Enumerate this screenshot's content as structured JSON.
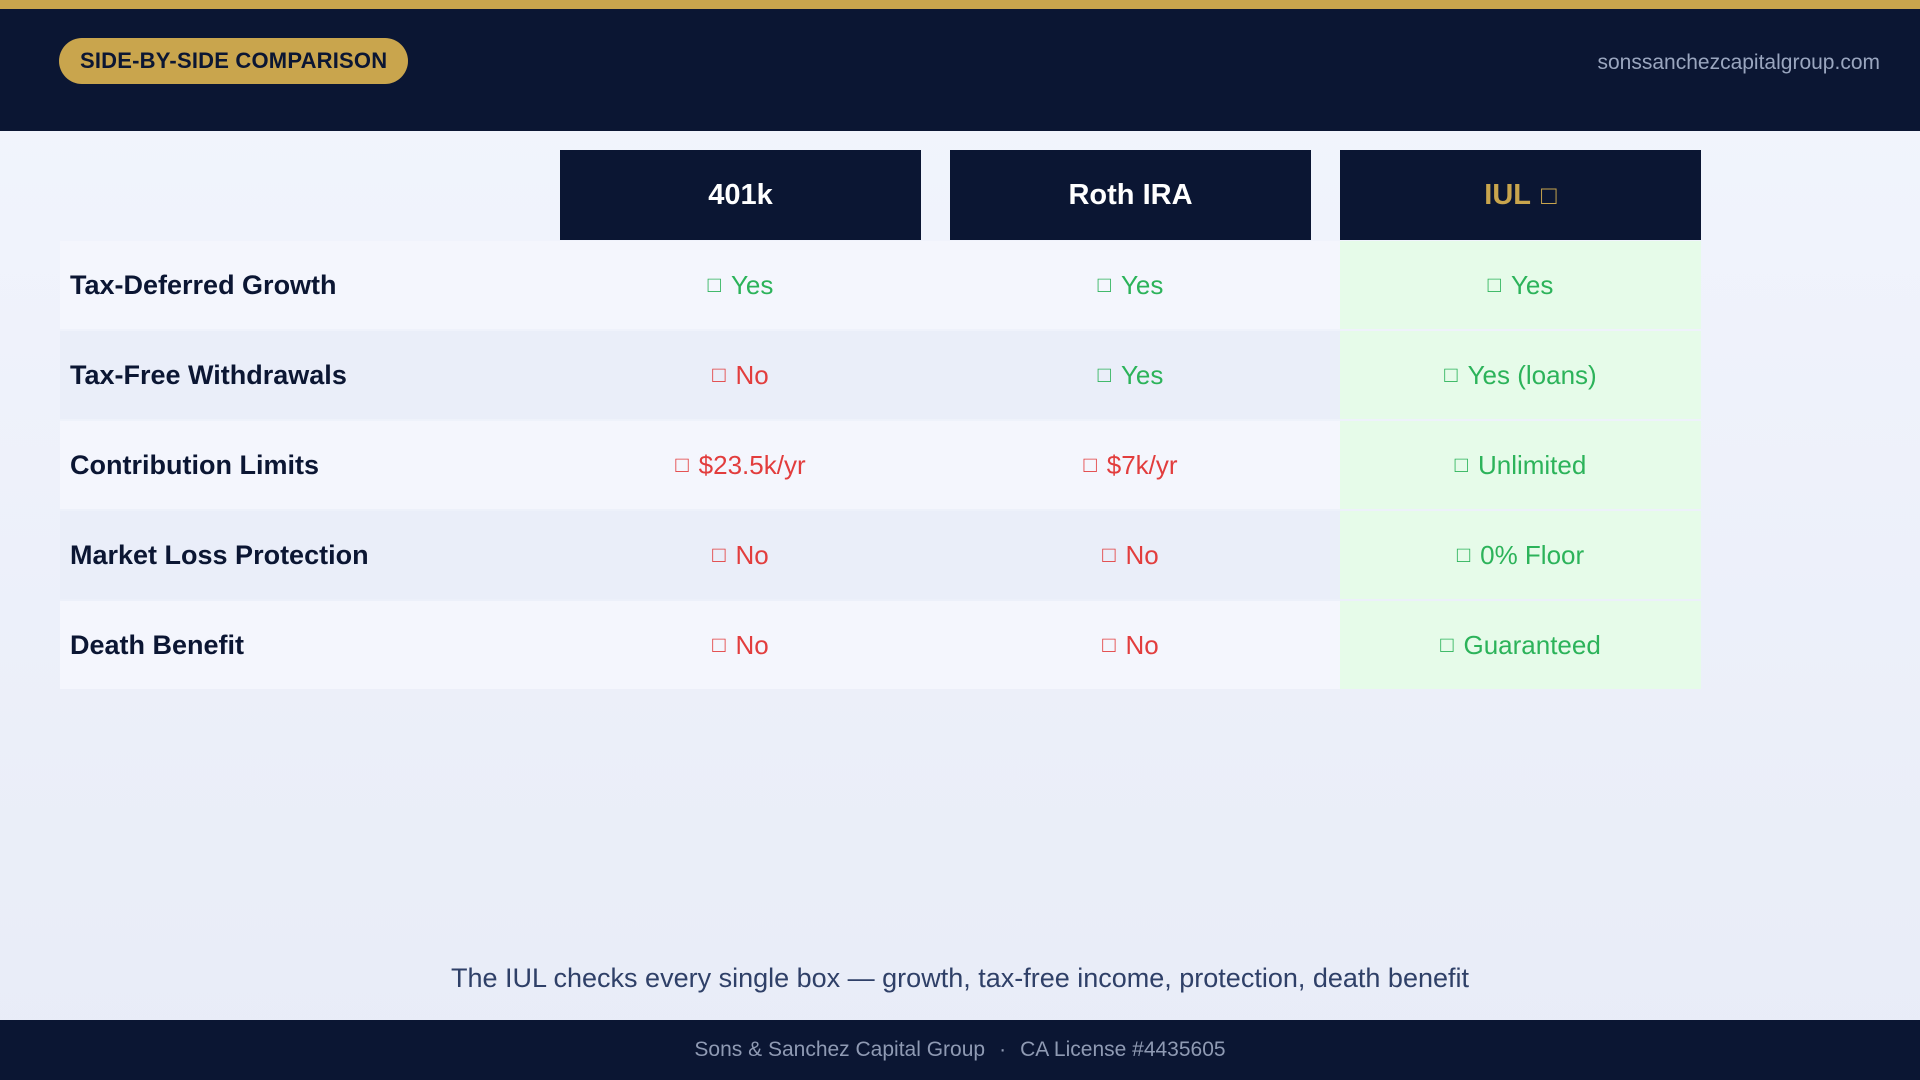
{
  "header": {
    "badge": "SIDE-BY-SIDE COMPARISON",
    "site": "sonssanchezcapitalgroup.com"
  },
  "columns": [
    {
      "label": "401k",
      "icon": ""
    },
    {
      "label": "Roth IRA",
      "icon": ""
    },
    {
      "label": "IUL",
      "icon": "□",
      "icon_name": "star-icon"
    }
  ],
  "rows": [
    {
      "label": "Tax-Deferred Growth",
      "cells": [
        {
          "text": "Yes",
          "status": "good"
        },
        {
          "text": "Yes",
          "status": "good"
        },
        {
          "text": "Yes",
          "status": "good"
        }
      ]
    },
    {
      "label": "Tax-Free Withdrawals",
      "cells": [
        {
          "text": "No",
          "status": "bad"
        },
        {
          "text": "Yes",
          "status": "good"
        },
        {
          "text": "Yes (loans)",
          "status": "good"
        }
      ]
    },
    {
      "label": "Contribution Limits",
      "cells": [
        {
          "text": "$23.5k/yr",
          "status": "bad"
        },
        {
          "text": "$7k/yr",
          "status": "bad"
        },
        {
          "text": "Unlimited",
          "status": "good"
        }
      ]
    },
    {
      "label": "Market Loss Protection",
      "cells": [
        {
          "text": "No",
          "status": "bad"
        },
        {
          "text": "No",
          "status": "bad"
        },
        {
          "text": "0% Floor",
          "status": "good"
        }
      ]
    },
    {
      "label": "Death Benefit",
      "cells": [
        {
          "text": "No",
          "status": "bad"
        },
        {
          "text": "No",
          "status": "bad"
        },
        {
          "text": "Guaranteed",
          "status": "good"
        }
      ]
    }
  ],
  "mark_glyph": "□",
  "mark_icons": {
    "good": "check-icon",
    "bad": "cross-icon"
  },
  "colors": {
    "navy": "#0b1633",
    "gold": "#c9a54d",
    "good": "#2cb35a",
    "bad": "#e23d3d",
    "iul_highlight": "#e6fbe9"
  },
  "tagline": "The IUL checks every single box — growth, tax-free income, protection, death benefit",
  "footer": {
    "company": "Sons & Sanchez Capital Group",
    "separator": "·",
    "license": "CA License #4435605"
  }
}
